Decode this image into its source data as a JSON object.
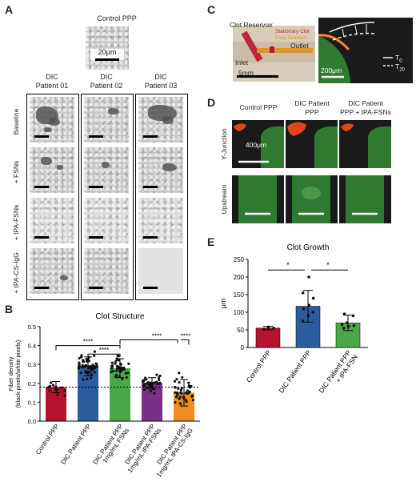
{
  "panels": {
    "A": {
      "letter": "A",
      "control_label": "Control PPP",
      "control_scale": "20μm",
      "columns": [
        "DIC\nPatient 01",
        "DIC\nPatient 02",
        "DIC\nPatient 03"
      ],
      "col_lines": [
        [
          "DIC",
          "Patient 01"
        ],
        [
          "DIC",
          "Patient 02"
        ],
        [
          "DIC",
          "Patient 03"
        ]
      ],
      "rows": [
        "Baseline",
        "+ FSNs",
        "+ tPA-FSNs",
        "+ tPA-CS-IgG"
      ]
    },
    "B": {
      "letter": "B",
      "significance": [
        "****",
        "****",
        "****",
        "****"
      ]
    },
    "C": {
      "letter": "C",
      "clot_reservoir": "Clot Reservoir",
      "stationary_clot": "Stationary Clot",
      "flow_solution": "Flow Solution",
      "outlet": "Outlet",
      "inlet": "Inlet",
      "scale_left": "5mm",
      "scale_right": "200μm",
      "t0": "T",
      "t0_sub": "0",
      "t20": "T",
      "t20_sub": "20"
    },
    "D": {
      "letter": "D",
      "columns": [
        [
          "Control PPP"
        ],
        [
          "DIC Patient",
          "PPP"
        ],
        [
          "DIC Patient",
          "PPP + tPA-FSNs"
        ]
      ],
      "rows": [
        "Y-Junction",
        "Upstream"
      ],
      "scale": "400μm"
    },
    "E": {
      "letter": "E",
      "significance": [
        "*",
        "*"
      ]
    }
  },
  "chart_data": [
    {
      "type": "bar",
      "panel": "B",
      "title": "Clot Structure",
      "ylabel": "Fiber density\n(black pixels/white pixels)",
      "ylabel_lines": [
        "Fiber density",
        "(black pixels/white pixels)"
      ],
      "categories": [
        "Control PPP",
        "DIC Patient PPP",
        "DIC Patient PPP\n1mg/mL FSNs",
        "DIC Patient PPP\n1mg/mL tPA-FSNs",
        "DIC Patient PPP\n1mg/mL tPA-CS-IgG"
      ],
      "category_lines": [
        [
          "Control PPP"
        ],
        [
          "DIC Patient PPP"
        ],
        [
          "DIC Patient PPP",
          "1mg/mL FSNs"
        ],
        [
          "DIC Patient PPP",
          "1mg/mL tPA-FSNs"
        ],
        [
          "DIC Patient PPP",
          "1mg/mL tPA-CS-IgG"
        ]
      ],
      "values": [
        0.18,
        0.29,
        0.28,
        0.2,
        0.15
      ],
      "errors": [
        0.03,
        0.05,
        0.05,
        0.03,
        0.07
      ],
      "colors": [
        "#b5122d",
        "#2b5d9e",
        "#4aa84a",
        "#7a2f86",
        "#f28c1a"
      ],
      "reference_line": 0.18,
      "ylim": [
        0,
        0.5
      ],
      "yticks": [
        0.0,
        0.1,
        0.2,
        0.3,
        0.4,
        0.5
      ],
      "ytick_labels": [
        "0.0",
        "0.1",
        "0.2",
        "0.3",
        "0.4",
        "0.5"
      ],
      "points_count": [
        14,
        55,
        40,
        40,
        40
      ]
    },
    {
      "type": "bar",
      "panel": "E",
      "title": "Clot Growth",
      "ylabel": "μm",
      "categories": [
        "Control PPP",
        "DIC Patient PPP",
        "DIC Patient PPP\n+ tPA-FSN"
      ],
      "category_lines": [
        [
          "Control PPP"
        ],
        [
          "DIC Patient PPP"
        ],
        [
          "DIC Patient PPP",
          "+ tPA-FSN"
        ]
      ],
      "values": [
        55,
        117,
        70
      ],
      "errors": [
        5,
        45,
        22
      ],
      "colors": [
        "#b5122d",
        "#2b5d9e",
        "#4aa84a"
      ],
      "points": [
        [
          52,
          58,
          55
        ],
        [
          75,
          90,
          100,
          110,
          120,
          140,
          155,
          200
        ],
        [
          55,
          60,
          62,
          65,
          70,
          90,
          95
        ]
      ],
      "ylim": [
        0,
        250
      ],
      "yticks": [
        0,
        50,
        100,
        150,
        200,
        250
      ],
      "ytick_labels": [
        "0",
        "50",
        "100",
        "150",
        "200",
        "250"
      ]
    }
  ]
}
